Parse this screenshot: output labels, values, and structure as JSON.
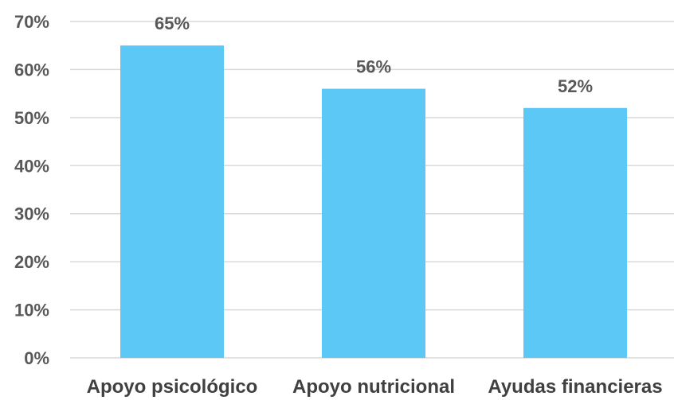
{
  "chart_data": {
    "type": "bar",
    "categories": [
      "Apoyo psicológico",
      "Apoyo nutricional",
      "Ayudas financieras"
    ],
    "values": [
      65,
      56,
      52
    ],
    "data_labels": [
      "65%",
      "56%",
      "52%"
    ],
    "title": "",
    "xlabel": "",
    "ylabel": "",
    "ylim": [
      0,
      70
    ],
    "yticks": [
      0,
      10,
      20,
      30,
      40,
      50,
      60,
      70
    ],
    "ytick_labels": [
      "0%",
      "10%",
      "20%",
      "30%",
      "40%",
      "50%",
      "60%",
      "70%"
    ],
    "grid": true,
    "legend": "none",
    "bar_color": "#5BC8F5",
    "grid_color": "#D9D9D9"
  }
}
